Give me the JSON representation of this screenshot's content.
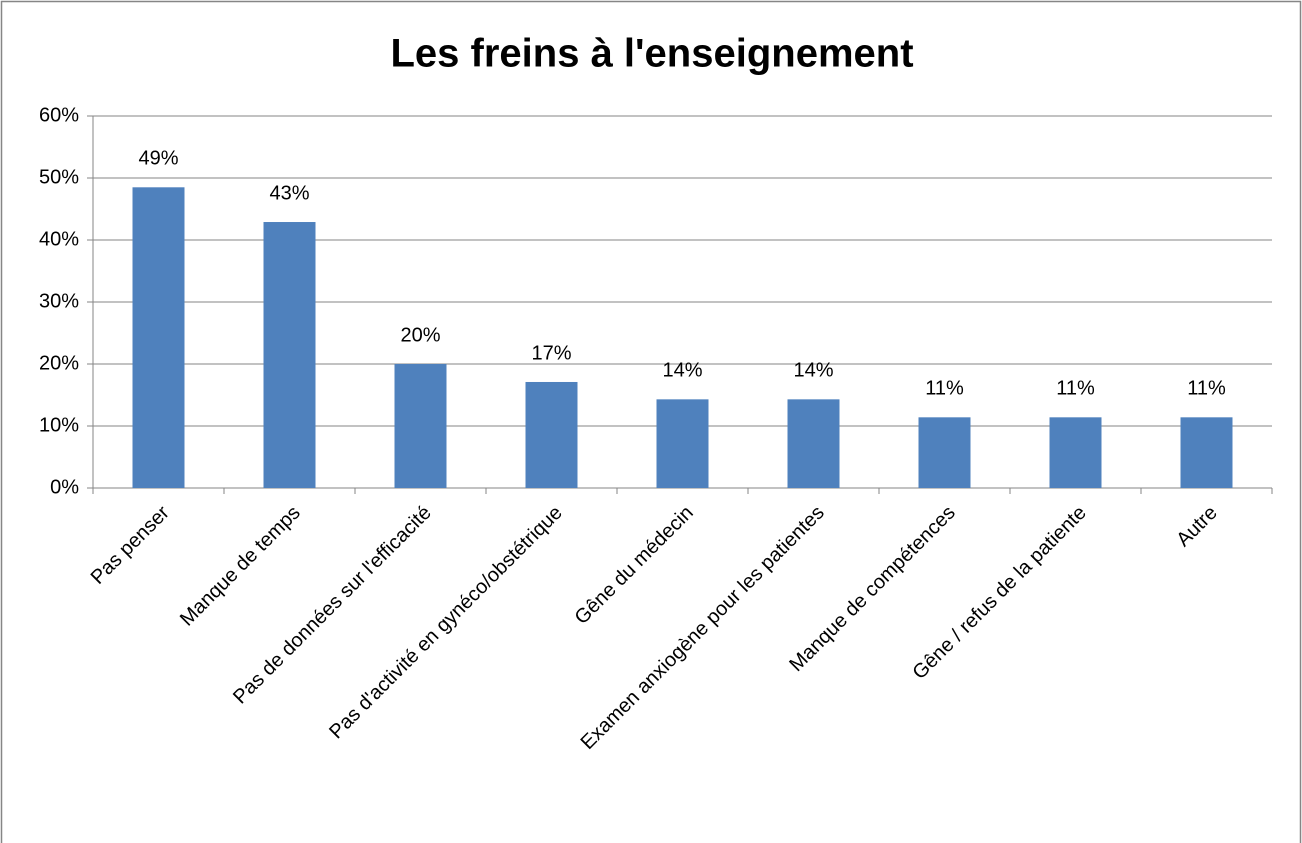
{
  "chart_data": {
    "type": "bar",
    "title": "Les freins à l'enseignement",
    "categories": [
      "Pas penser",
      "Manque de temps",
      "Pas de données sur l'efficacité",
      "Pas d'activité en gynéco/obstétrique",
      "Gêne du médecin",
      "Examen anxiogène pour les patientes",
      "Manque de compétences",
      "Gêne / refus de la patiente",
      "Autre"
    ],
    "values": [
      48.5,
      42.9,
      20,
      17.1,
      14.3,
      14.3,
      11.4,
      11.4,
      11.4
    ],
    "value_labels": [
      "49%",
      "43%",
      "20%",
      "17%",
      "14%",
      "14%",
      "11%",
      "11%",
      "11%"
    ],
    "color": "#4f81bd",
    "ylim": [
      0,
      60
    ],
    "yticks": [
      {
        "value": 0,
        "label": "0%"
      },
      {
        "value": 10,
        "label": "10%"
      },
      {
        "value": 20,
        "label": "20%"
      },
      {
        "value": 30,
        "label": "30%"
      },
      {
        "value": 40,
        "label": "40%"
      },
      {
        "value": 50,
        "label": "50%"
      },
      {
        "value": 60,
        "label": "60%"
      }
    ],
    "grid": true
  }
}
